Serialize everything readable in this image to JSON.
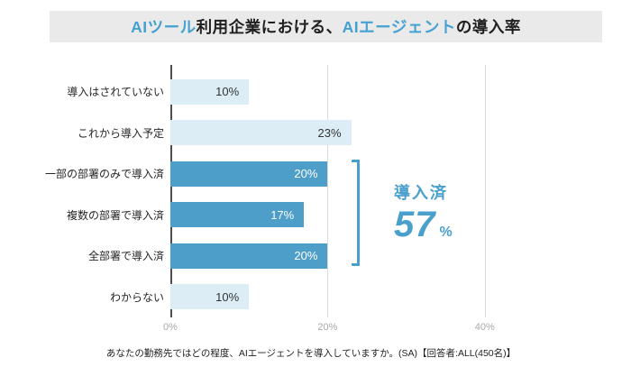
{
  "header": {
    "title_parts": [
      {
        "text": "AIツール",
        "style": "accent"
      },
      {
        "text": "利用企業における、",
        "style": "normal"
      },
      {
        "text": "AIエージェント",
        "style": "accent"
      },
      {
        "text": "の導入率",
        "style": "normal"
      }
    ]
  },
  "colors": {
    "accent_blue": "#45A1D2",
    "title_dark": "#1f1f1f",
    "dark_bar": "#4D9EC9",
    "light_bar": "#DCEDF6",
    "bracket_blue": "#4AA0CC",
    "value_label_on_dark": "#ffffff",
    "value_label_on_light": "#333333",
    "banner_bg": "#EAEAEA"
  },
  "chart_data": {
    "type": "bar",
    "orientation": "horizontal",
    "categories": [
      "導入はされていない",
      "これから導入予定",
      "一部の部署のみで導入済",
      "複数の部署で導入済",
      "全部署で導入済",
      "わからない"
    ],
    "values": [
      10,
      23,
      20,
      17,
      20,
      10
    ],
    "value_labels": [
      "10%",
      "23%",
      "20%",
      "17%",
      "20%",
      "10%"
    ],
    "bar_styles": [
      "light",
      "light",
      "dark",
      "dark",
      "dark",
      "light"
    ],
    "xlim": [
      0,
      50
    ],
    "x_ticks": [
      "0%",
      "20%",
      "40%"
    ],
    "x_tick_values": [
      0,
      20,
      40
    ],
    "grid": "vertical",
    "bracket_rows": [
      2,
      4
    ]
  },
  "annotation": {
    "label": "導入済",
    "value": "57",
    "unit": "%"
  },
  "footnote": "あなたの勤務先ではどの程度、AIエージェントを導入していますか。(SA)【回答者:ALL(450名)】"
}
